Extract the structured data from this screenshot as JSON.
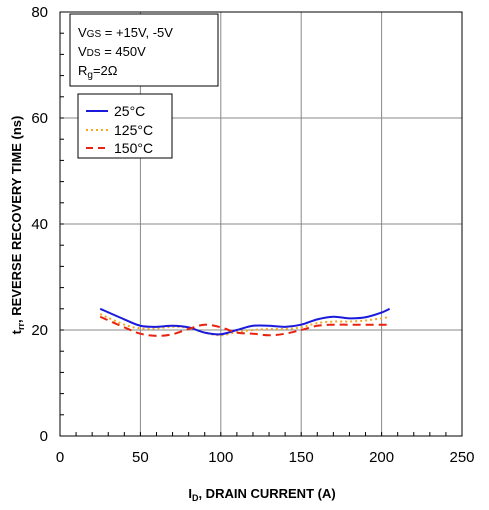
{
  "chart_data": {
    "type": "line",
    "title": "",
    "xlabel": {
      "prefix": "I",
      "sub": "D",
      "text": ", DRAIN CURRENT (A)"
    },
    "ylabel": {
      "prefix": "t",
      "sub": "rr",
      "text": ", REVERSE RECOVERY TIME (ns)"
    },
    "xlim": [
      0,
      250
    ],
    "ylim": [
      0,
      80
    ],
    "x_ticks": [
      0,
      50,
      100,
      150,
      200,
      250
    ],
    "y_ticks": [
      0,
      20,
      40,
      60,
      80
    ],
    "grid": true,
    "conditions": [
      {
        "pre": "V",
        "sub": "GS",
        "post": " = +15V, -5V"
      },
      {
        "pre": "V",
        "sub": "DS",
        "post": " = 450V"
      },
      {
        "pre": "R",
        "sub": "g",
        "post": "=2Ω"
      }
    ],
    "legend_position": "top-left",
    "series": [
      {
        "name": "25°C",
        "color": "#1a1adb",
        "dash": "solid",
        "x": [
          25,
          40,
          50,
          60,
          70,
          80,
          90,
          100,
          110,
          120,
          130,
          140,
          150,
          160,
          170,
          180,
          190,
          200,
          205
        ],
        "y": [
          24.0,
          22.0,
          20.8,
          20.6,
          20.8,
          20.5,
          19.5,
          19.2,
          20.0,
          20.8,
          20.8,
          20.6,
          21.0,
          22.0,
          22.5,
          22.2,
          22.4,
          23.3,
          24.0
        ]
      },
      {
        "name": "125°C",
        "color": "#f5a623",
        "dash": "dotted",
        "x": [
          25,
          40,
          50,
          60,
          70,
          80,
          90,
          100,
          110,
          120,
          130,
          140,
          150,
          160,
          170,
          180,
          190,
          200,
          205
        ],
        "y": [
          23.0,
          21.0,
          20.3,
          20.3,
          20.6,
          20.4,
          19.5,
          19.0,
          19.6,
          20.0,
          20.2,
          20.2,
          20.5,
          21.3,
          21.6,
          21.6,
          21.8,
          22.2,
          22.5
        ]
      },
      {
        "name": "150°C",
        "color": "#e8220f",
        "dash": "dashed",
        "x": [
          25,
          40,
          50,
          60,
          70,
          80,
          90,
          100,
          110,
          120,
          130,
          140,
          150,
          160,
          170,
          180,
          190,
          200,
          205
        ],
        "y": [
          22.5,
          20.5,
          19.3,
          18.9,
          19.2,
          20.2,
          21.0,
          20.5,
          19.5,
          19.3,
          19.0,
          19.3,
          20.0,
          20.8,
          21.0,
          21.0,
          21.0,
          21.0,
          21.0
        ]
      }
    ]
  }
}
